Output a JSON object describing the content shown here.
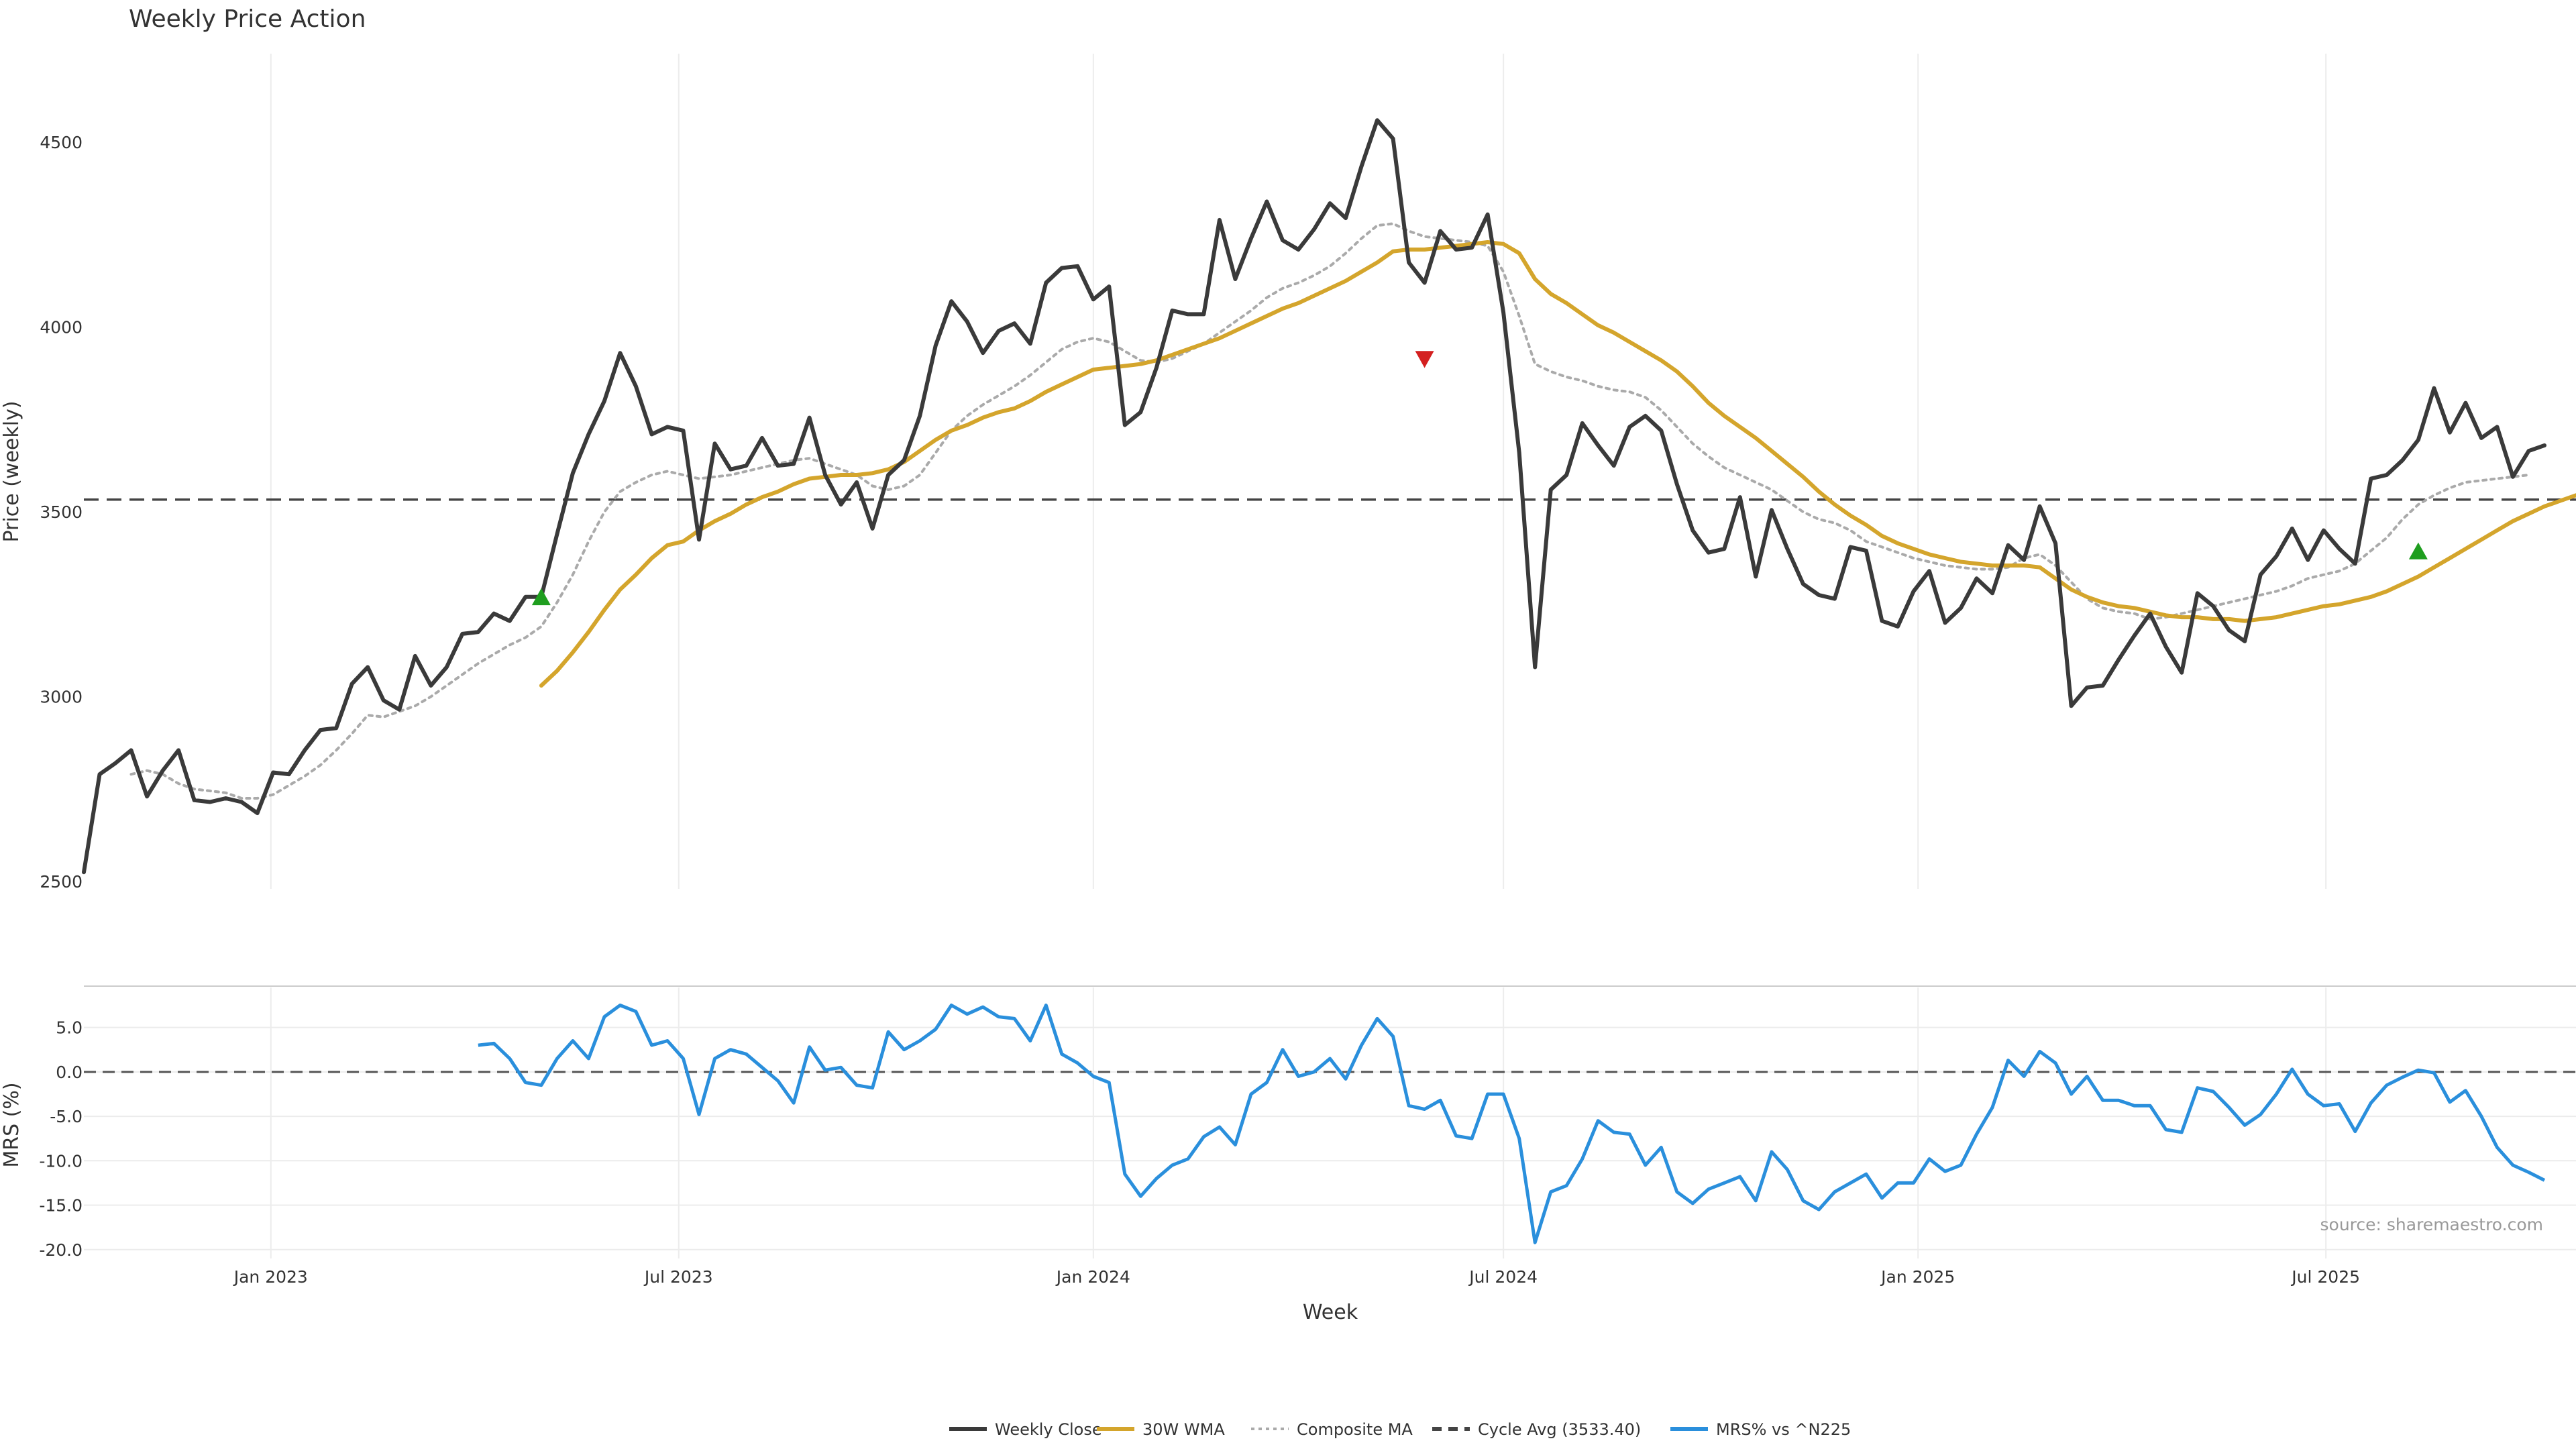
{
  "chart_data": [
    {
      "id": "price",
      "type": "line",
      "title": "Weekly Price Action",
      "ylabel": "Price (weekly)",
      "xlabel": "Week",
      "x_start": "2022-10-10",
      "x_step_days": 7,
      "xlim": [
        "2022-10-10",
        "2025-10-20"
      ],
      "ylim": [
        2480,
        4740
      ],
      "yticks": [
        2500,
        3000,
        3500,
        4000,
        4500
      ],
      "grid": "vertical",
      "series": [
        {
          "name": "Weekly Close",
          "color": "#3a3a3a",
          "style": "solid",
          "values": [
            2525,
            2790,
            2820,
            2855,
            2730,
            2800,
            2855,
            2720,
            2715,
            2725,
            2715,
            2685,
            2795,
            2790,
            2855,
            2910,
            2915,
            3035,
            3080,
            2990,
            2965,
            3110,
            3030,
            3080,
            3170,
            3175,
            3225,
            3205,
            3270,
            3270,
            3440,
            3605,
            3710,
            3800,
            3930,
            3840,
            3710,
            3730,
            3720,
            3425,
            3685,
            3615,
            3625,
            3700,
            3625,
            3630,
            3755,
            3600,
            3520,
            3580,
            3455,
            3600,
            3640,
            3760,
            3950,
            4070,
            4015,
            3930,
            3990,
            4010,
            3955,
            4120,
            4160,
            4165,
            4075,
            4110,
            3735,
            3770,
            3890,
            4045,
            4035,
            4035,
            4290,
            4130,
            4240,
            4340,
            4235,
            4210,
            4265,
            4335,
            4295,
            4435,
            4560,
            4510,
            4175,
            4120,
            4260,
            4210,
            4215,
            4305,
            4040,
            3660,
            3080,
            3560,
            3600,
            3740,
            3680,
            3625,
            3730,
            3760,
            3720,
            3575,
            3450,
            3390,
            3400,
            3540,
            3325,
            3505,
            3400,
            3305,
            3275,
            3265,
            3405,
            3395,
            3205,
            3190,
            3285,
            3340,
            3200,
            3240,
            3320,
            3280,
            3410,
            3370,
            3515,
            3415,
            2975,
            3025,
            3030,
            3100,
            3165,
            3225,
            3135,
            3065,
            3280,
            3245,
            3180,
            3150,
            3330,
            3380,
            3455,
            3370,
            3450,
            3400,
            3360,
            3590,
            3600,
            3640,
            3695,
            3835,
            3715,
            3795,
            3700,
            3730,
            3595,
            3665,
            3680
          ]
        },
        {
          "name": "30W WMA",
          "color": "#d4a52c",
          "style": "solid",
          "x_offset": 29,
          "values": [
            3030,
            3070,
            3120,
            3175,
            3235,
            3290,
            3330,
            3375,
            3410,
            3420,
            3450,
            3475,
            3495,
            3520,
            3540,
            3555,
            3575,
            3590,
            3595,
            3600,
            3600,
            3605,
            3615,
            3635,
            3665,
            3695,
            3720,
            3735,
            3755,
            3770,
            3780,
            3800,
            3825,
            3845,
            3865,
            3885,
            3890,
            3895,
            3900,
            3910,
            3925,
            3940,
            3955,
            3970,
            3990,
            4010,
            4030,
            4050,
            4065,
            4085,
            4105,
            4125,
            4150,
            4175,
            4205,
            4210,
            4210,
            4215,
            4220,
            4225,
            4230,
            4225,
            4200,
            4130,
            4090,
            4065,
            4035,
            4005,
            3985,
            3960,
            3935,
            3910,
            3880,
            3840,
            3795,
            3760,
            3730,
            3700,
            3665,
            3630,
            3595,
            3555,
            3520,
            3490,
            3465,
            3435,
            3415,
            3400,
            3385,
            3375,
            3365,
            3360,
            3355,
            3355,
            3355,
            3350,
            3320,
            3290,
            3270,
            3255,
            3245,
            3240,
            3230,
            3220,
            3215,
            3215,
            3210,
            3210,
            3205,
            3210,
            3215,
            3225,
            3235,
            3245,
            3250,
            3260,
            3270,
            3285,
            3305,
            3325,
            3350,
            3375,
            3400,
            3425,
            3450,
            3475,
            3495,
            3515,
            3530,
            3545
          ]
        },
        {
          "name": "Composite MA",
          "color": "#aaaaaa",
          "style": "dotted",
          "x_offset": 3,
          "values": [
            2790,
            2800,
            2790,
            2765,
            2750,
            2745,
            2740,
            2725,
            2725,
            2735,
            2760,
            2785,
            2815,
            2855,
            2900,
            2950,
            2945,
            2960,
            2975,
            3000,
            3030,
            3060,
            3090,
            3115,
            3140,
            3160,
            3190,
            3255,
            3330,
            3420,
            3500,
            3555,
            3580,
            3600,
            3610,
            3600,
            3590,
            3595,
            3600,
            3610,
            3620,
            3630,
            3640,
            3645,
            3630,
            3615,
            3600,
            3570,
            3560,
            3570,
            3600,
            3660,
            3720,
            3760,
            3790,
            3815,
            3840,
            3870,
            3905,
            3940,
            3960,
            3970,
            3960,
            3935,
            3910,
            3905,
            3915,
            3935,
            3955,
            3985,
            4015,
            4045,
            4080,
            4105,
            4120,
            4140,
            4165,
            4200,
            4240,
            4275,
            4280,
            4260,
            4245,
            4240,
            4235,
            4230,
            4220,
            4150,
            4030,
            3900,
            3880,
            3865,
            3855,
            3840,
            3830,
            3825,
            3810,
            3775,
            3730,
            3685,
            3650,
            3620,
            3600,
            3580,
            3560,
            3530,
            3500,
            3480,
            3470,
            3450,
            3420,
            3405,
            3390,
            3375,
            3365,
            3355,
            3350,
            3345,
            3345,
            3350,
            3375,
            3385,
            3355,
            3310,
            3265,
            3240,
            3230,
            3225,
            3210,
            3215,
            3225,
            3235,
            3245,
            3255,
            3265,
            3275,
            3285,
            3300,
            3320,
            3330,
            3340,
            3360,
            3395,
            3430,
            3480,
            3520,
            3545,
            3565,
            3580,
            3585,
            3590,
            3595,
            3600
          ]
        },
        {
          "name": "Cycle Avg (3533.40)",
          "color": "#444444",
          "style": "dashed",
          "value": 3533.4
        }
      ],
      "markers": [
        {
          "type": "buy",
          "x_index": 29,
          "value": 3268,
          "color": "#1f9e1f"
        },
        {
          "type": "sell",
          "x_index": 85,
          "value": 3915,
          "color": "#d42020"
        },
        {
          "type": "buy",
          "x_index": 148,
          "value": 3392,
          "color": "#1f9e1f"
        }
      ]
    },
    {
      "id": "mrs",
      "type": "line",
      "ylabel": "MRS (%)",
      "xlabel": "Week",
      "x_start": "2022-10-10",
      "x_step_days": 7,
      "xlim": [
        "2022-10-10",
        "2025-10-20"
      ],
      "ylim": [
        -21,
        9.5
      ],
      "yticks": [
        -20.0,
        -15.0,
        -10.0,
        -5.0,
        0.0,
        5.0
      ],
      "ytick_labels": [
        "-20.0",
        "-15.0",
        "-10.0",
        "-5.0",
        "0.0",
        "5.0"
      ],
      "xtick_dates": [
        "2023-01-01",
        "2023-07-01",
        "2024-01-01",
        "2024-07-01",
        "2025-01-01",
        "2025-07-01"
      ],
      "xtick_labels": [
        "Jan 2023",
        "Jul 2023",
        "Jan 2024",
        "Jul 2024",
        "Jan 2025",
        "Jul 2025"
      ],
      "zero_line": 0,
      "series": [
        {
          "name": "MRS% vs ^N225",
          "color": "#2a8fdc",
          "style": "solid",
          "x_offset": 25,
          "values": [
            3.0,
            3.2,
            1.5,
            -1.2,
            -1.5,
            1.5,
            3.5,
            1.5,
            6.2,
            7.5,
            6.8,
            3.0,
            3.5,
            1.5,
            -4.8,
            1.5,
            2.5,
            2.0,
            0.5,
            -1.0,
            -3.5,
            2.8,
            0.2,
            0.5,
            -1.5,
            -1.8,
            4.5,
            2.5,
            3.5,
            4.8,
            7.5,
            6.5,
            7.3,
            6.2,
            6.0,
            3.5,
            7.5,
            2.0,
            1.0,
            -0.5,
            -1.2,
            -11.5,
            -14.0,
            -12.0,
            -10.5,
            -9.8,
            -7.3,
            -6.2,
            -8.2,
            -2.5,
            -1.2,
            2.5,
            -0.5,
            0.0,
            1.5,
            -0.8,
            3.0,
            6.0,
            4.0,
            -3.8,
            -4.2,
            -3.2,
            -7.2,
            -7.5,
            -2.5,
            -2.5,
            -7.5,
            -19.2,
            -13.5,
            -12.8,
            -9.8,
            -5.5,
            -6.8,
            -7.0,
            -10.5,
            -8.5,
            -13.5,
            -14.8,
            -13.2,
            -12.5,
            -11.8,
            -14.5,
            -9.0,
            -11.0,
            -14.5,
            -15.5,
            -13.5,
            -12.5,
            -11.5,
            -14.2,
            -12.5,
            -12.5,
            -9.8,
            -11.2,
            -10.5,
            -7.0,
            -4.0,
            1.3,
            -0.5,
            2.3,
            1.0,
            -2.5,
            -0.5,
            -3.2,
            -3.2,
            -3.8,
            -3.8,
            -6.5,
            -6.8,
            -1.8,
            -2.2,
            -4.0,
            -6.0,
            -4.8,
            -2.5,
            0.3,
            -2.5,
            -3.8,
            -3.6,
            -6.7,
            -3.5,
            -1.5,
            -0.6,
            0.2,
            -0.1,
            -3.4,
            -2.1,
            -5.0,
            -8.5,
            -10.5,
            -11.3,
            -12.2
          ]
        }
      ]
    }
  ],
  "annotations": {
    "source": "source: sharemaestro.com"
  },
  "legend": {
    "placement": "bottom-center",
    "items": [
      {
        "label": "Weekly Close",
        "color": "#3a3a3a",
        "style": "solid"
      },
      {
        "label": "30W WMA",
        "color": "#d4a52c",
        "style": "solid"
      },
      {
        "label": "Composite MA",
        "color": "#aaaaaa",
        "style": "dotted"
      },
      {
        "label": "Cycle Avg (3533.40)",
        "color": "#444444",
        "style": "dashed"
      },
      {
        "label": "MRS% vs ^N225",
        "color": "#2a8fdc",
        "style": "solid"
      }
    ]
  }
}
